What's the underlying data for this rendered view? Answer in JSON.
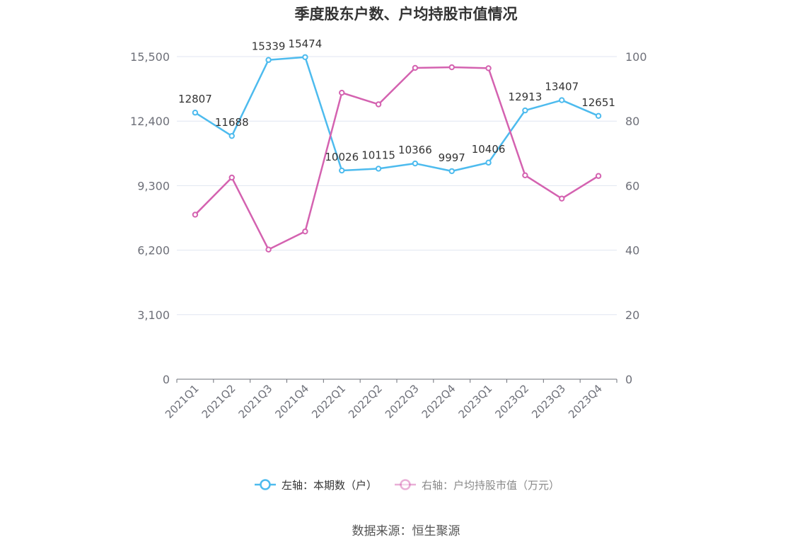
{
  "chart_data": {
    "type": "line",
    "title": "季度股东户数、户均持股市值情况",
    "categories": [
      "2021Q1",
      "2021Q2",
      "2021Q3",
      "2021Q4",
      "2022Q1",
      "2022Q2",
      "2022Q3",
      "2022Q4",
      "2023Q1",
      "2023Q2",
      "2023Q3",
      "2023Q4"
    ],
    "left_axis": {
      "ticks": [
        "0",
        "3,100",
        "6,200",
        "9,300",
        "12,400",
        "15,500"
      ],
      "min": 0,
      "max": 15500
    },
    "right_axis": {
      "ticks": [
        "0",
        "20",
        "40",
        "60",
        "80",
        "100"
      ],
      "min": 0,
      "max": 100
    },
    "series": [
      {
        "name": "左轴：本期数（户）",
        "axis": "left",
        "color": "#4dbbee",
        "values": [
          12807,
          11688,
          15339,
          15474,
          10026,
          10115,
          10366,
          9997,
          10406,
          12913,
          13407,
          12651
        ],
        "labels": [
          "12807",
          "11688",
          "15339",
          "15474",
          "10026",
          "10115",
          "10366",
          "9997",
          "10406",
          "12913",
          "13407",
          "12651"
        ]
      },
      {
        "name": "右轴：户均持股市值（万元）",
        "axis": "right",
        "color": "#d462b0",
        "values": [
          51.0,
          62.5,
          40.2,
          45.8,
          88.8,
          85.2,
          96.5,
          96.7,
          96.4,
          63.2,
          56.0,
          63.0
        ]
      }
    ],
    "grid": true,
    "legend": "bottom-center"
  },
  "footer": {
    "source": "数据来源：恒生聚源"
  }
}
